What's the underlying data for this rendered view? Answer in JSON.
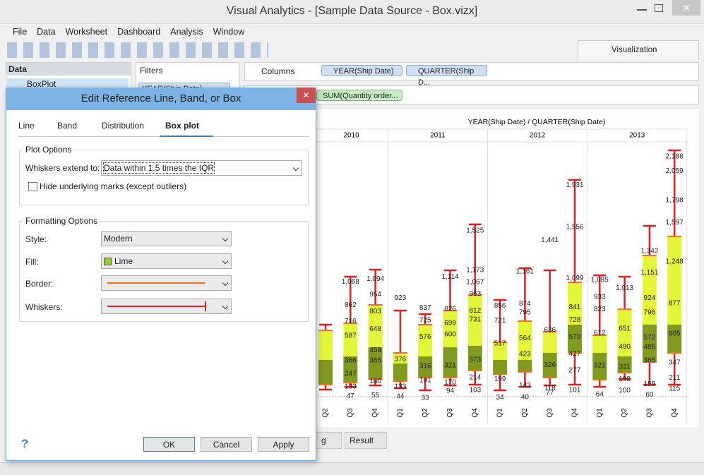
{
  "window": {
    "title": "Visual Analytics - [Sample Data Source - Box.vizx]"
  },
  "menu": [
    "File",
    "Data",
    "Worksheet",
    "Dashboard",
    "Analysis",
    "Window"
  ],
  "toolbar": {
    "tab": "Visualization"
  },
  "data_pane": {
    "title": "Data",
    "item": "BoxPlot"
  },
  "filters": {
    "title": "Filters",
    "pill": "YEAR(Ship Date)"
  },
  "shelves": {
    "columns_label": "Columns",
    "column_pills": [
      "YEAR(Ship Date)",
      "QUARTER(Ship D..."
    ],
    "row_pills": [
      "SUM(Quantity order..."
    ]
  },
  "chart": {
    "header": "YEAR(Ship Date) / QUARTER(Ship Date)",
    "years": [
      "2010",
      "2011",
      "2012",
      "2013"
    ],
    "columns": [
      {
        "quarter": "Q2",
        "whisker": [
          107,
          687
        ],
        "box": [
          151,
          372,
          636
        ],
        "labels": []
      },
      {
        "quarter": "Q3",
        "whisker": [
          132,
          1115
        ],
        "box": [
          170,
          403,
          700
        ],
        "labels": [
          {
            "value": 1068,
            "label": "1,068"
          },
          862,
          716,
          587,
          366,
          247,
          133,
          47
        ]
      },
      {
        "quarter": "Q4",
        "whisker": [
          145,
          1178
        ],
        "box": [
          202,
          485,
          863
        ],
        "labels": [
          {
            "value": 1094,
            "label": "1,094"
          },
          954,
          803,
          648,
          459,
          366,
          180,
          55
        ]
      },
      {
        "quarter": "Q1",
        "whisker": [
          120,
          813
        ],
        "box": [
          183,
          340,
          435
        ],
        "labels": [
          923,
          376,
          133,
          44
        ]
      },
      {
        "quarter": "Q2",
        "whisker": [
          101,
          781
        ],
        "box": [
          214,
          403,
          687
        ],
        "labels": [
          837,
          725,
          576,
          316,
          191,
          33
        ]
      },
      {
        "quarter": "Q3",
        "whisker": [
          145,
          1172
        ],
        "box": [
          214,
          485,
          813
        ],
        "labels": [
          {
            "value": 1114,
            "label": "1,114"
          },
          826,
          699,
          600,
          321,
          170,
          94
        ]
      },
      {
        "quarter": "Q4",
        "whisker": [
          151,
          1582
        ],
        "box": [
          277,
          498,
          951
        ],
        "labels": [
          {
            "value": 1525,
            "label": "1,525"
          },
          {
            "value": 1173,
            "label": "1,173"
          },
          {
            "value": 1067,
            "label": "1,067"
          },
          963,
          812,
          731,
          373,
          214,
          103
        ]
      },
      {
        "quarter": "Q1",
        "whisker": [
          101,
          907
        ],
        "box": [
          246,
          372,
          529
        ],
        "labels": [
          856,
          721,
          517,
          199,
          34
        ]
      },
      {
        "quarter": "Q2",
        "whisker": [
          132,
          1191
        ],
        "box": [
          265,
          372,
          718
        ],
        "labels": [
          {
            "value": 1161,
            "label": "1,161"
          },
          874,
          795,
          564,
          423,
          143,
          40
        ]
      },
      {
        "quarter": "Q3",
        "whisker": [
          145,
          1172
        ],
        "box": [
          214,
          435,
          624
        ],
        "labels": [
          {
            "value": 1441,
            "label": "1,441"
          },
          636,
          326,
          118,
          77
        ]
      },
      {
        "quarter": "Q4",
        "whisker": [
          151,
          1979
        ],
        "box": [
          435,
          687,
          1065
        ],
        "labels": [
          {
            "value": 1931,
            "label": "1,931"
          },
          {
            "value": 1556,
            "label": "1,556"
          },
          {
            "value": 1099,
            "label": "1,099"
          },
          841,
          728,
          579,
          427,
          277,
          101
        ]
      },
      {
        "quarter": "Q1",
        "whisker": [
          132,
          1128
        ],
        "box": [
          195,
          435,
          592
        ],
        "labels": [
          {
            "value": 1085,
            "label": "1,085"
          },
          933,
          823,
          612,
          321,
          64
        ]
      },
      {
        "quarter": "Q2",
        "whisker": [
          202,
          1115
        ],
        "box": [
          258,
          403,
          825
        ],
        "labels": [
          {
            "value": 1013,
            "label": "1,013"
          },
          651,
          490,
          311,
          198,
          100
        ]
      },
      {
        "quarter": "Q3",
        "whisker": [
          151,
          1569
        ],
        "box": [
          353,
          687,
          1304
        ],
        "labels": [
          {
            "value": 1342,
            "label": "1,342"
          },
          {
            "value": 1151,
            "label": "1,151"
          },
          924,
          796,
          572,
          485,
          365,
          155,
          60
        ]
      },
      {
        "quarter": "Q4",
        "whisker": [
          151,
          2243
        ],
        "box": [
          435,
          687,
          1474
        ],
        "labels": [
          {
            "value": 2188,
            "label": "2,188"
          },
          {
            "value": 2059,
            "label": "2,059"
          },
          {
            "value": 1798,
            "label": "1,798"
          },
          {
            "value": 1597,
            "label": "1,597"
          },
          {
            "value": 1248,
            "label": "1,248"
          },
          877,
          605,
          347,
          211,
          115
        ]
      }
    ]
  },
  "sheet_tabs": [
    "g",
    "Result"
  ],
  "dialog": {
    "title": "Edit Reference Line, Band, or Box",
    "tabs": [
      "Line",
      "Band",
      "Distribution",
      "Box plot"
    ],
    "plot_options": {
      "legend": "Plot Options",
      "whiskers_label": "Whiskers extend to:",
      "whiskers_value": "Data within 1.5 times the IQR",
      "checkbox": "Hide underlying marks (except outliers)"
    },
    "formatting": {
      "legend": "Formatting Options",
      "style_label": "Style:",
      "style_value": "Modern",
      "fill_label": "Fill:",
      "fill_value": "Lime",
      "border_label": "Border:",
      "whiskers_label": "Whiskers:"
    },
    "help": "?",
    "buttons": [
      "OK",
      "Cancel",
      "Apply"
    ]
  }
}
